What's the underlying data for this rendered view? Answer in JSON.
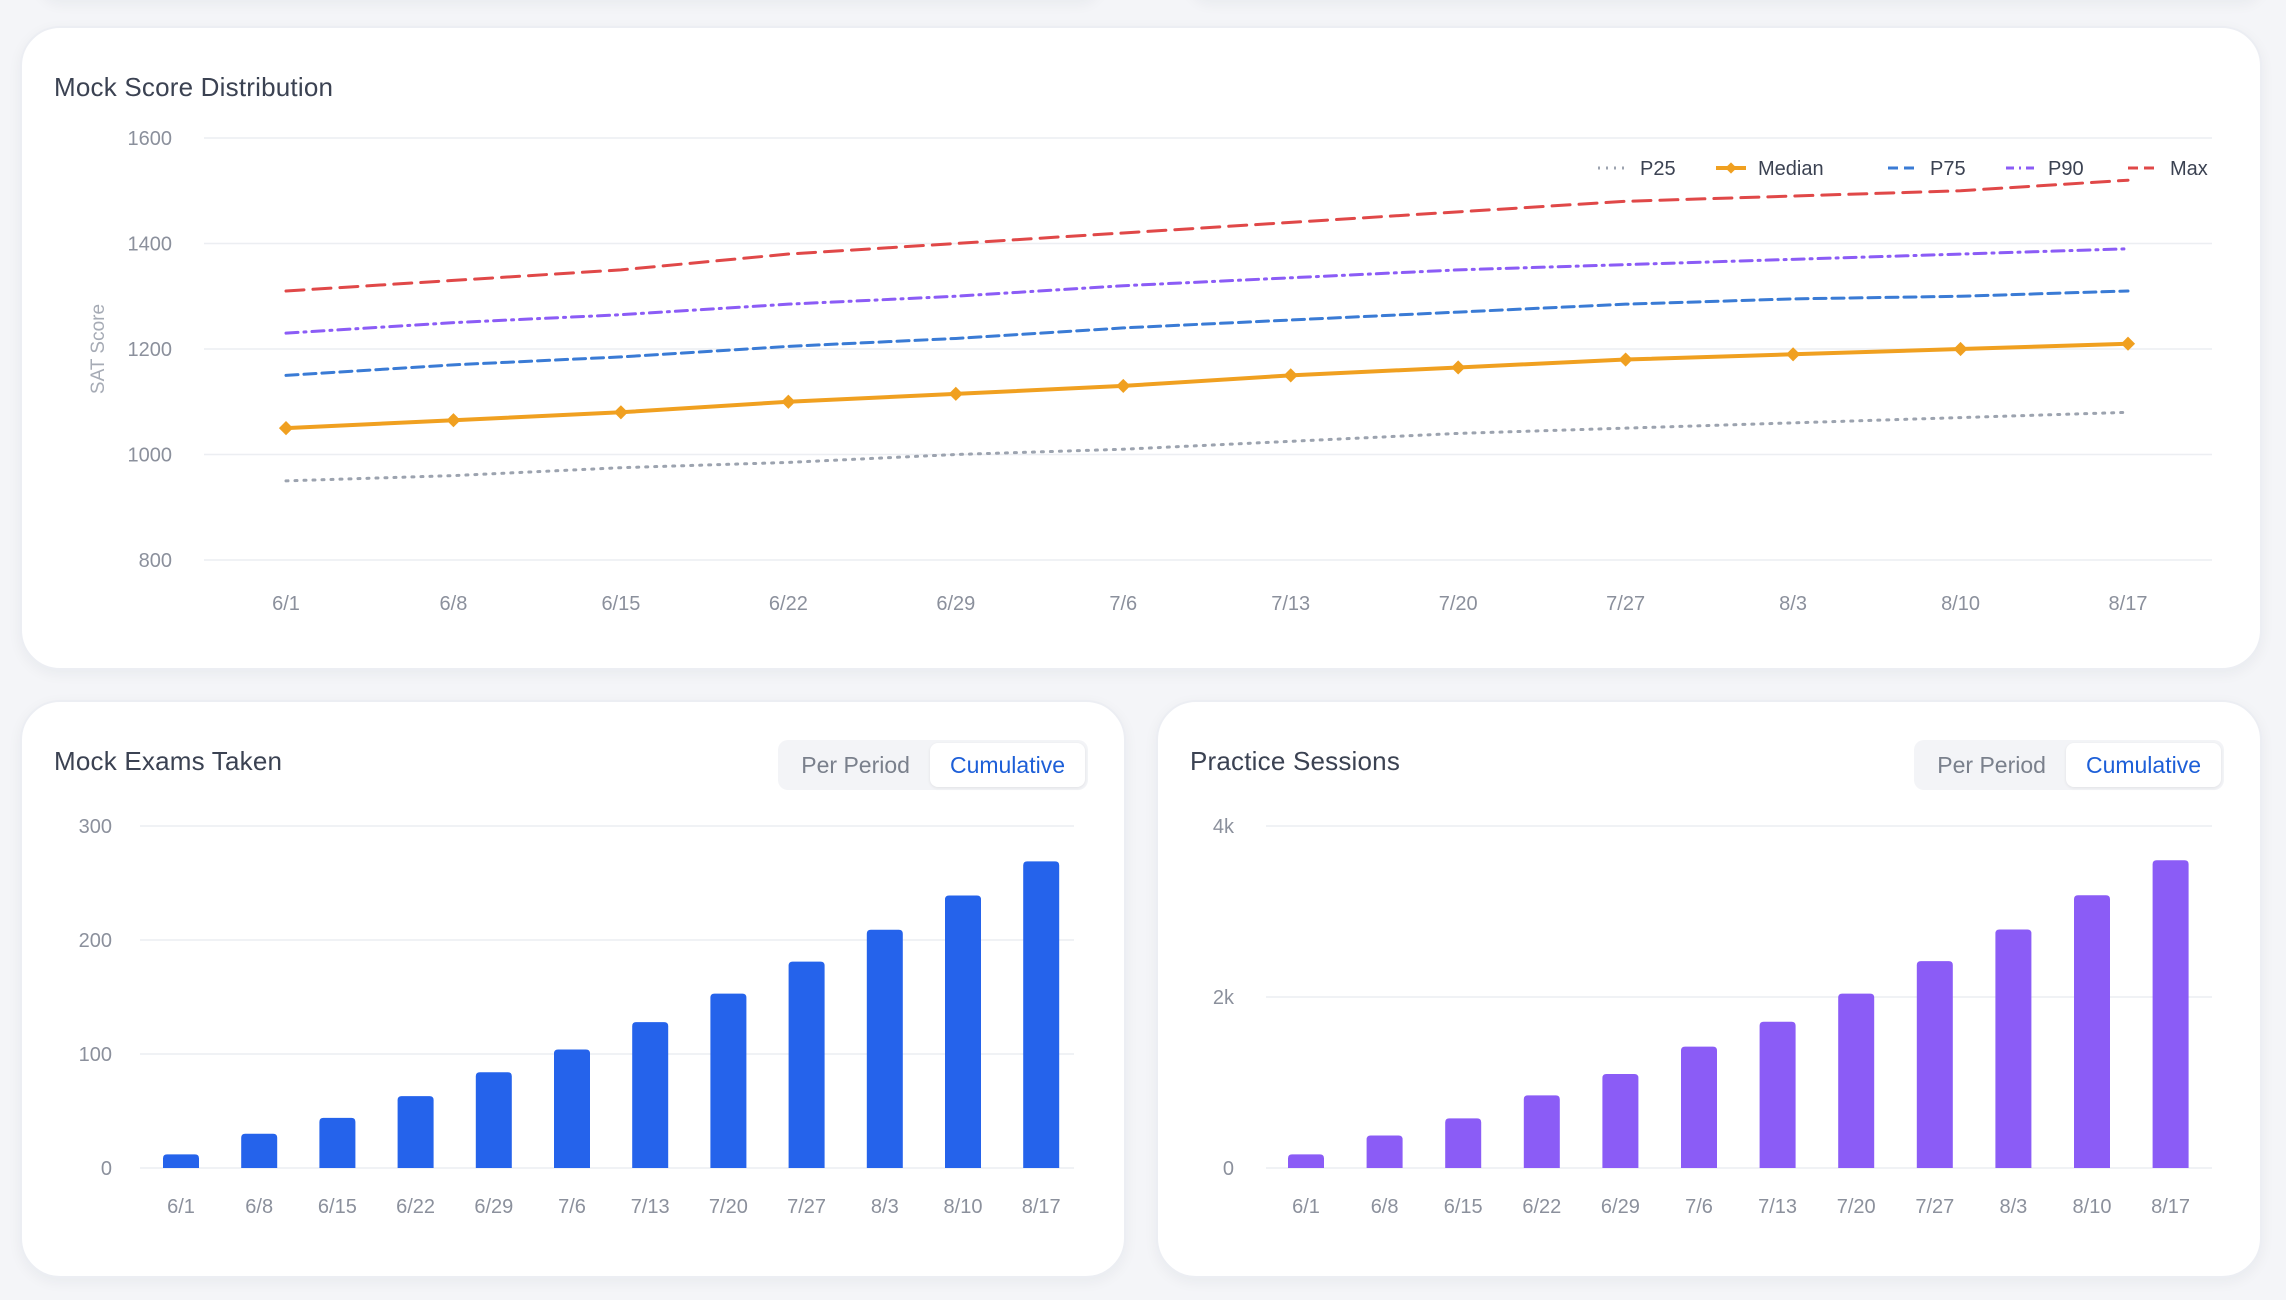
{
  "cards": {
    "distribution": {
      "title": "Mock Score Distribution",
      "chart_data": {
        "type": "line",
        "x": [
          "6/1",
          "6/8",
          "6/15",
          "6/22",
          "6/29",
          "7/6",
          "7/13",
          "7/20",
          "7/27",
          "8/3",
          "8/10",
          "8/17"
        ],
        "ylabel": "SAT Score",
        "ylim": [
          800,
          1600
        ],
        "yticks": [
          800,
          1000,
          1200,
          1400,
          1600
        ],
        "grid": true,
        "legend": "top-right",
        "series": [
          {
            "name": "P25",
            "color": "#9ca3af",
            "style": "dotted",
            "values": [
              950,
              960,
              975,
              985,
              1000,
              1010,
              1025,
              1040,
              1050,
              1060,
              1070,
              1080
            ]
          },
          {
            "name": "Median",
            "color": "#f0a020",
            "style": "solid-markers",
            "values": [
              1050,
              1065,
              1080,
              1100,
              1115,
              1130,
              1150,
              1165,
              1180,
              1190,
              1200,
              1210
            ]
          },
          {
            "name": "P75",
            "color": "#3a7bd5",
            "style": "dashed",
            "values": [
              1150,
              1170,
              1185,
              1205,
              1220,
              1240,
              1255,
              1270,
              1285,
              1295,
              1300,
              1310
            ]
          },
          {
            "name": "P90",
            "color": "#8b5cf6",
            "style": "dashdot",
            "values": [
              1230,
              1250,
              1265,
              1285,
              1300,
              1320,
              1335,
              1350,
              1360,
              1370,
              1380,
              1390
            ]
          },
          {
            "name": "Max",
            "color": "#e04848",
            "style": "longdash",
            "values": [
              1310,
              1330,
              1350,
              1380,
              1400,
              1420,
              1440,
              1460,
              1480,
              1490,
              1500,
              1520
            ]
          }
        ]
      }
    },
    "mock_exams": {
      "title": "Mock Exams Taken",
      "toggle": {
        "per_period": "Per Period",
        "cumulative": "Cumulative",
        "active": "cumulative"
      },
      "chart_data": {
        "type": "bar",
        "categories": [
          "6/1",
          "6/8",
          "6/15",
          "6/22",
          "6/29",
          "7/6",
          "7/13",
          "7/20",
          "7/27",
          "8/3",
          "8/10",
          "8/17"
        ],
        "values": [
          12,
          30,
          44,
          63,
          84,
          104,
          128,
          153,
          181,
          209,
          239,
          269
        ],
        "ylim": [
          0,
          300
        ],
        "yticks": [
          0,
          100,
          200,
          300
        ],
        "ytick_labels": [
          "0",
          "100",
          "200",
          "300"
        ],
        "color": "#2563eb",
        "grid": true
      }
    },
    "practice_sessions": {
      "title": "Practice Sessions",
      "toggle": {
        "per_period": "Per Period",
        "cumulative": "Cumulative",
        "active": "cumulative"
      },
      "chart_data": {
        "type": "bar",
        "categories": [
          "6/1",
          "6/8",
          "6/15",
          "6/22",
          "6/29",
          "7/6",
          "7/13",
          "7/20",
          "7/27",
          "8/3",
          "8/10",
          "8/17"
        ],
        "values": [
          160,
          380,
          580,
          850,
          1100,
          1420,
          1710,
          2040,
          2420,
          2790,
          3190,
          3600
        ],
        "ylim": [
          0,
          4000
        ],
        "yticks": [
          0,
          2000,
          4000
        ],
        "ytick_labels": [
          "0",
          "2k",
          "4k"
        ],
        "color": "#8b5cf6",
        "grid": true
      }
    }
  }
}
